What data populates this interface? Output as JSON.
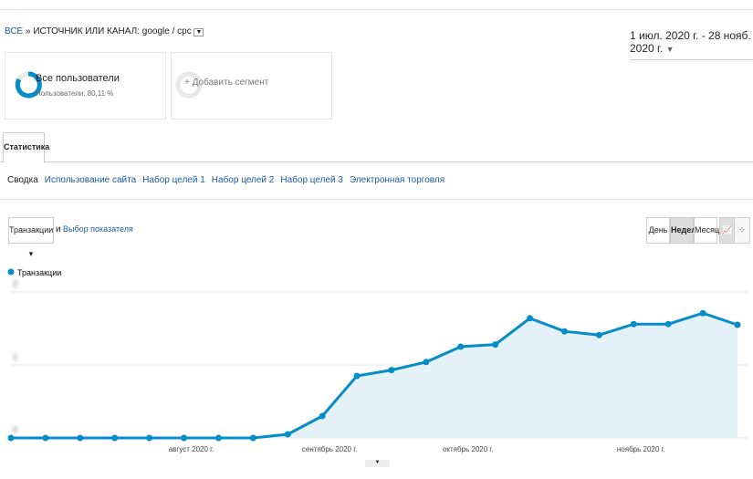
{
  "breadcrumb": {
    "root": "ВСЕ",
    "separator": "»",
    "dimension": "ИСТОЧНИК ИЛИ КАНАЛ: google / cpc"
  },
  "date_range": "1 июл. 2020 г. - 28 нояб. 2020 г.",
  "segments": [
    {
      "title": "Все пользователи",
      "subtitle": "Пользователи: 80,11 %"
    },
    {
      "title": "+ Добавить сегмент"
    }
  ],
  "tab": "Статистика",
  "subnav": [
    "Сводка",
    "Использование сайта",
    "Набор целей 1",
    "Набор целей 2",
    "Набор целей 3",
    "Электронная торговля"
  ],
  "metric_select": "Транзакции",
  "and": "и",
  "metric_link": "Выбор показателя",
  "period_buttons": [
    "День",
    "Неделя",
    "Месяц"
  ],
  "chart_data": {
    "type": "line",
    "categories": [
      null,
      null,
      null,
      null,
      null,
      "август 2020 г.",
      null,
      null,
      null,
      "сентябрь 2020 г.",
      null,
      null,
      null,
      "октябрь 2020 г.",
      null,
      null,
      null,
      null,
      "ноябрь 2020 г.",
      null,
      null,
      null
    ],
    "series": [
      {
        "name": "Транзакции",
        "color": "#058dc7",
        "values": [
          0,
          0,
          0,
          0,
          0,
          0,
          0,
          0,
          0.05,
          0.3,
          0.85,
          0.93,
          1.04,
          1.25,
          1.28,
          1.64,
          1.46,
          1.41,
          1.56,
          1.56,
          1.71,
          1.55
        ]
      }
    ],
    "ylim": [
      0,
      2
    ],
    "yticks": [
      0,
      1,
      2
    ],
    "grid": true
  }
}
